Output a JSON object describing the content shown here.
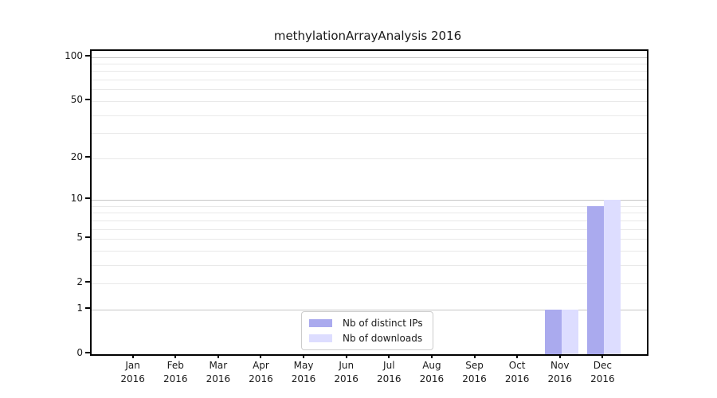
{
  "chart_data": {
    "type": "bar",
    "title": "methylationArrayAnalysis 2016",
    "categories": [
      "Jan",
      "Feb",
      "Mar",
      "Apr",
      "May",
      "Jun",
      "Jul",
      "Aug",
      "Sep",
      "Oct",
      "Nov",
      "Dec"
    ],
    "year_label": "2016",
    "series": [
      {
        "name": "Nb of distinct IPs",
        "color": "#aaaaee",
        "values": [
          0,
          0,
          0,
          0,
          0,
          0,
          0,
          0,
          0,
          0,
          1,
          9
        ]
      },
      {
        "name": "Nb of downloads",
        "color": "#ddddff",
        "values": [
          0,
          0,
          0,
          0,
          0,
          0,
          0,
          0,
          0,
          0,
          1,
          10
        ]
      }
    ],
    "ytick_labels": [
      0,
      1,
      2,
      5,
      10,
      20,
      50,
      100
    ],
    "major_gridlines": [
      1,
      10,
      100
    ],
    "minor_gridlines": [
      2,
      3,
      4,
      5,
      6,
      7,
      8,
      9,
      20,
      30,
      40,
      50,
      60,
      70,
      80,
      90
    ],
    "yscale": "log10(1+v)",
    "ylim": [
      0,
      110
    ],
    "xlabel": "",
    "ylabel": "",
    "grid": "on",
    "legend_position": "inside-bottom-center",
    "colors": {
      "axis": "#000000",
      "text": "#1a1a1a",
      "major_grid": "#c6c6c6",
      "minor_grid": "#e9e9e9",
      "background": "#ffffff"
    }
  }
}
